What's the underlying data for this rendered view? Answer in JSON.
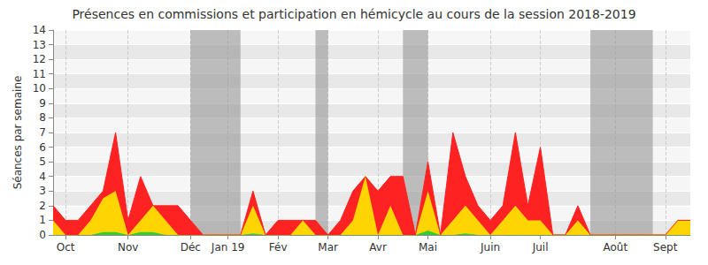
{
  "chart_data": {
    "type": "area",
    "title": "Présences en commissions et participation en hémicycle au cours de la session 2018-2019",
    "ylabel": "Séances par semaine",
    "stacked": true,
    "grid": true,
    "ylim": [
      0,
      14
    ],
    "yticks": [
      0,
      1,
      2,
      3,
      4,
      5,
      6,
      7,
      8,
      9,
      10,
      11,
      12,
      13,
      14
    ],
    "categories": [
      null,
      "Oct",
      null,
      null,
      null,
      null,
      "Nov",
      null,
      null,
      null,
      null,
      "Déc",
      null,
      null,
      "Jan 19",
      null,
      null,
      null,
      "Fév",
      null,
      null,
      null,
      "Mar",
      null,
      null,
      null,
      "Avr",
      null,
      null,
      null,
      "Mai",
      null,
      null,
      null,
      null,
      "Juin",
      null,
      null,
      null,
      "Juil",
      null,
      null,
      null,
      null,
      null,
      "Août",
      null,
      null,
      null,
      "Sept",
      null,
      null
    ],
    "shaded_weeks": [
      [
        11,
        15
      ],
      [
        21,
        22
      ],
      [
        28,
        30
      ],
      [
        43,
        48
      ]
    ],
    "series": [
      {
        "color": "#33cc33",
        "values": [
          0,
          0,
          0,
          0,
          0.2,
          0.2,
          0,
          0.2,
          0.2,
          0,
          0,
          0,
          0,
          0,
          0,
          0,
          0.1,
          0,
          0,
          0,
          0,
          0,
          0,
          0,
          0,
          0,
          0,
          0,
          0,
          0,
          0.3,
          0,
          0,
          0.1,
          0,
          0,
          0,
          0,
          0,
          0,
          0,
          0,
          0,
          0,
          0,
          0,
          0,
          0,
          0,
          0,
          0,
          0
        ]
      },
      {
        "color": "#ffd400",
        "values": [
          1,
          0,
          0,
          1,
          2.3,
          2.8,
          0,
          0.8,
          1.8,
          1,
          0,
          0,
          0,
          0,
          0,
          0,
          1.9,
          0,
          0,
          0,
          1,
          0,
          0,
          0,
          1,
          4,
          0,
          2,
          0,
          0,
          2.7,
          0,
          1,
          1.9,
          1,
          0,
          1,
          2,
          1,
          1,
          0,
          0,
          1,
          0,
          0,
          0,
          0,
          0,
          0,
          0,
          1,
          1
        ]
      },
      {
        "color": "#ff2222",
        "values": [
          1,
          1,
          1,
          1,
          0.5,
          4,
          1,
          3,
          0,
          1,
          2,
          1,
          0,
          0,
          0,
          0,
          1,
          0,
          1,
          1,
          0,
          1,
          0,
          1,
          2,
          0,
          3,
          2,
          4,
          0,
          2,
          0,
          6,
          2,
          1,
          1,
          1,
          5,
          1,
          5,
          0,
          0,
          1,
          0,
          0,
          0,
          0,
          0,
          0,
          0,
          0,
          0
        ]
      }
    ]
  }
}
